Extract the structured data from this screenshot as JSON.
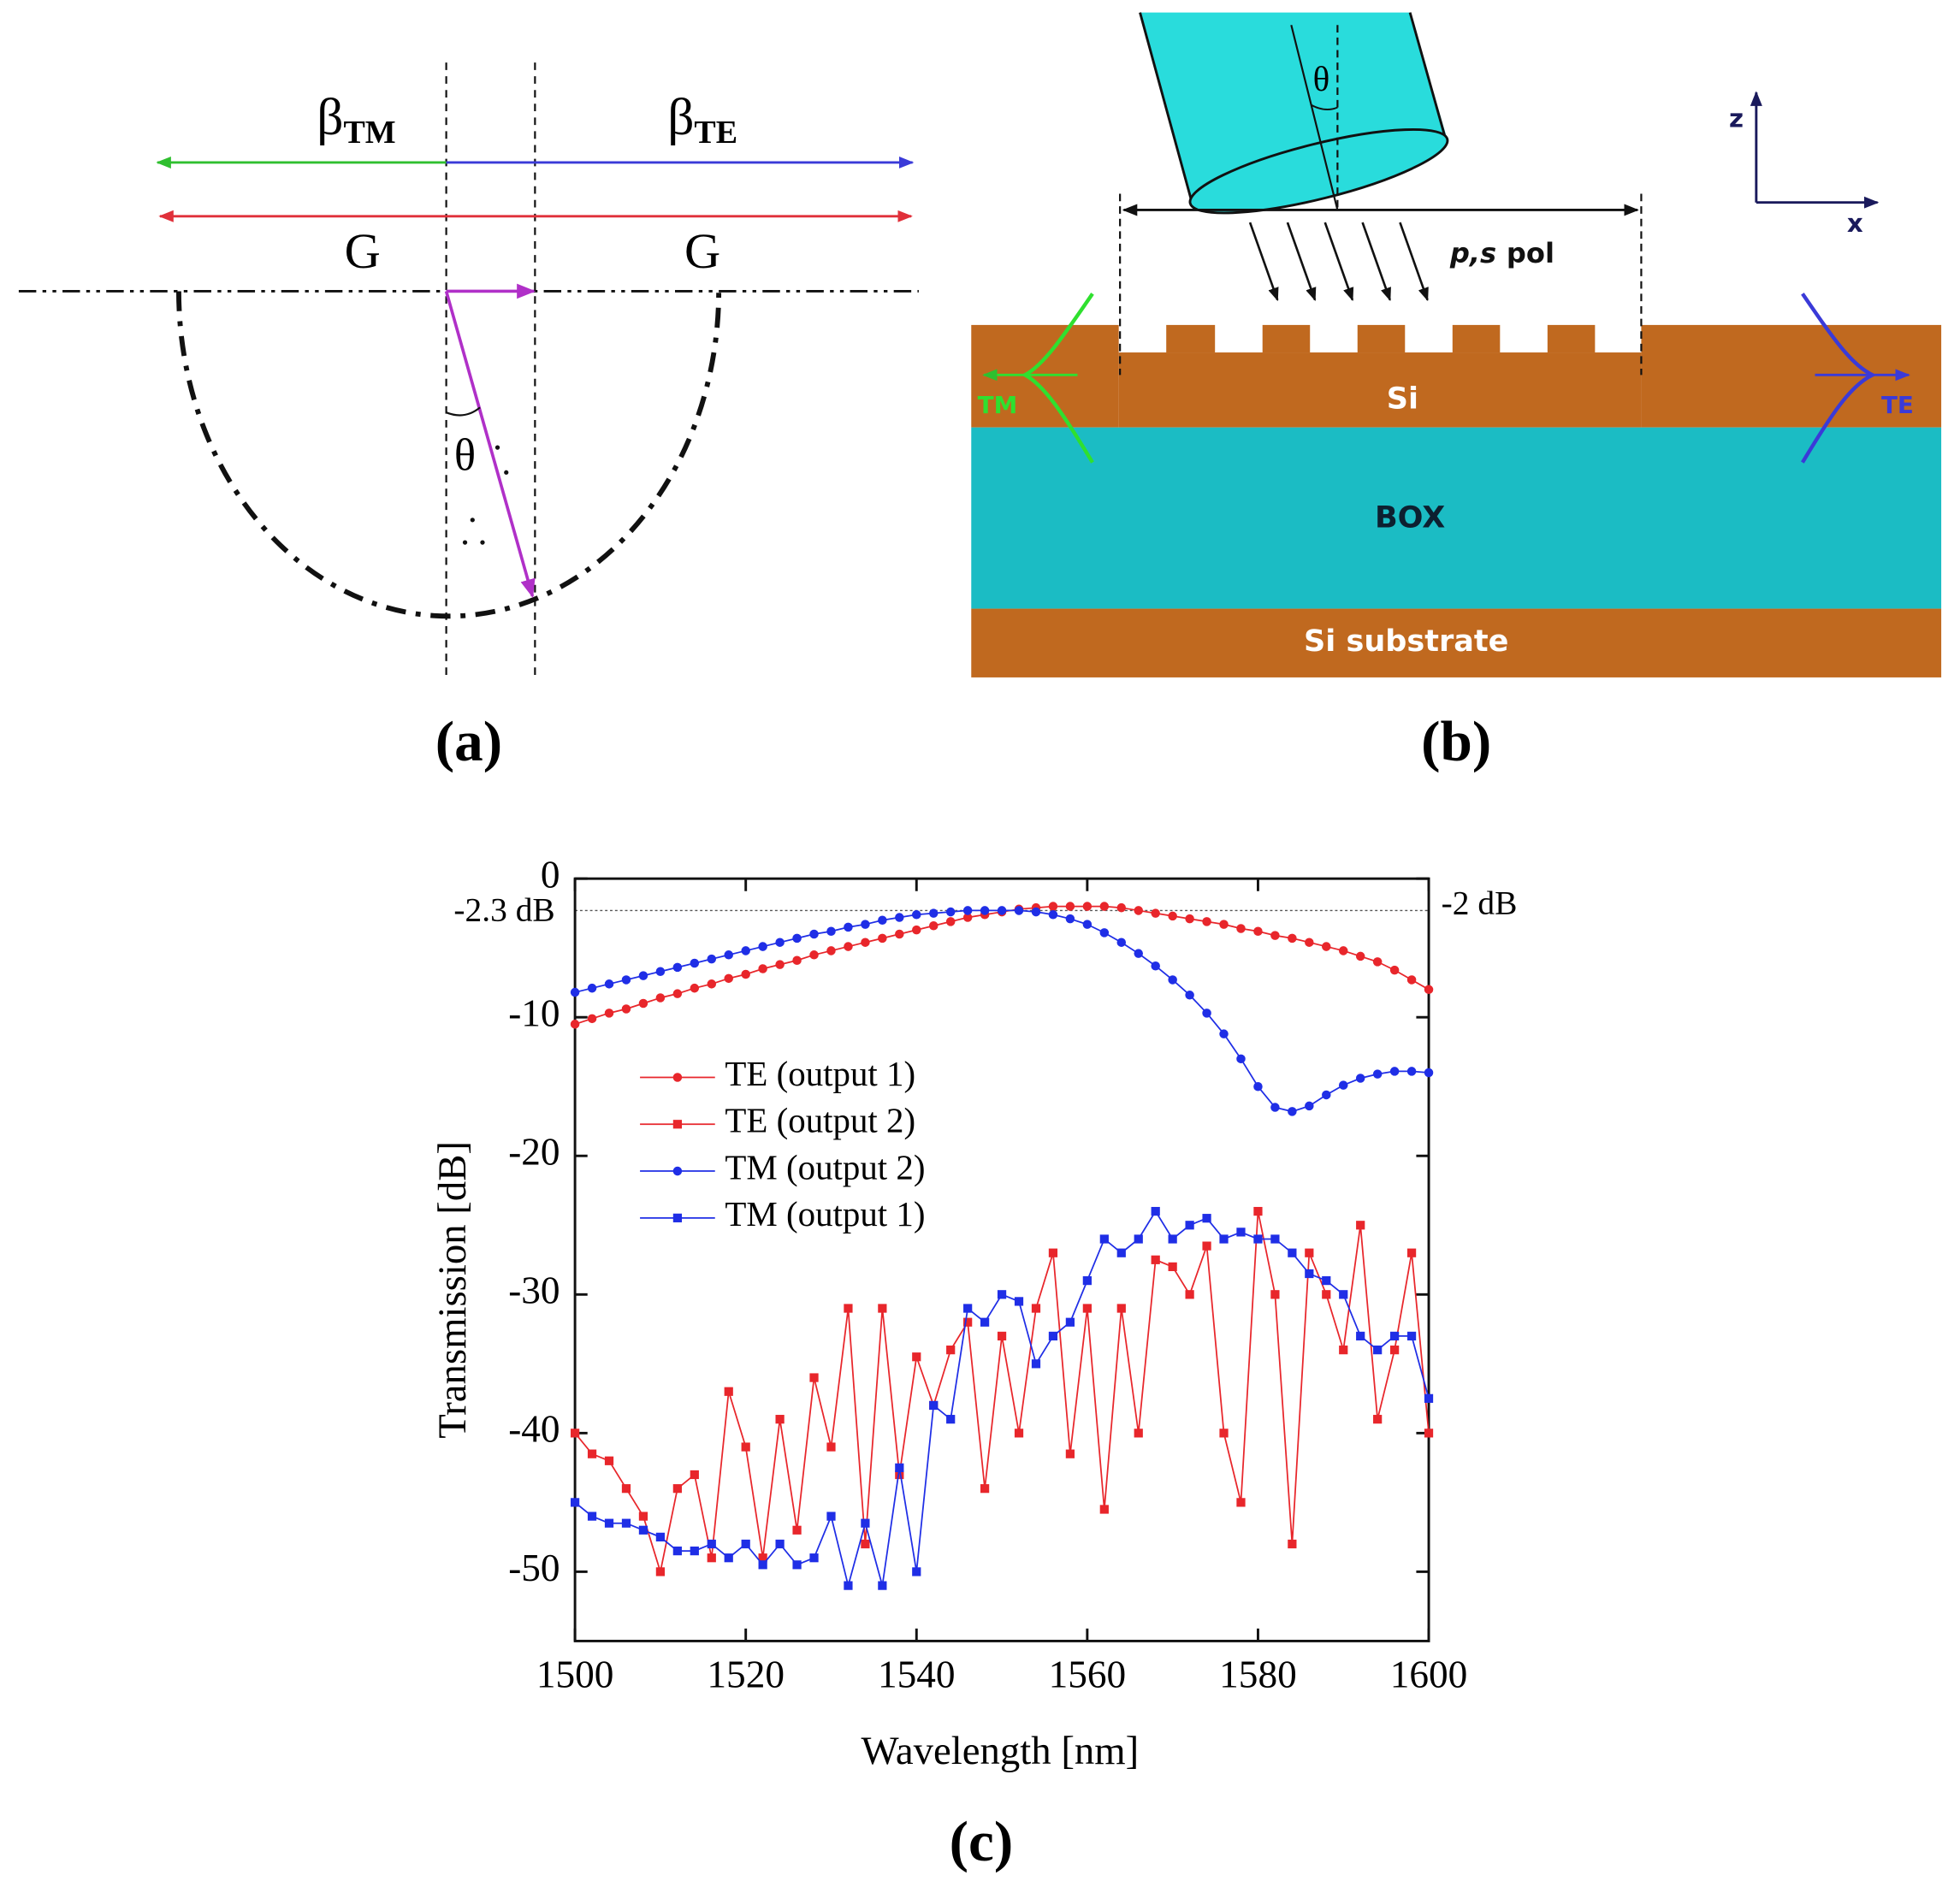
{
  "panel_a": {
    "label": "(a)",
    "beta_tm": {
      "symbol": "β",
      "subscript": "TM"
    },
    "beta_te": {
      "symbol": "β",
      "subscript": "TE"
    },
    "g_left": "G",
    "g_right": "G",
    "theta": "θ"
  },
  "panel_b": {
    "label": "(b)",
    "theta": "θ",
    "polarization": {
      "italic": "p,s",
      "text": "pol"
    },
    "layers": [
      "Si",
      "BOX",
      "Si substrate"
    ],
    "mode_left": "TM",
    "mode_right": "TE",
    "axis_z": "z",
    "axis_x": "x"
  },
  "panel_c_label": "(c)",
  "chart_data": {
    "type": "line",
    "x_label": "Wavelength [nm]",
    "y_label": "Transmission [dB]",
    "xlim": [
      1500,
      1600
    ],
    "xticks": [
      1500,
      1520,
      1540,
      1560,
      1580,
      1600
    ],
    "ylim": [
      -55,
      0
    ],
    "yticks": [
      0,
      -10,
      -20,
      -30,
      -40,
      -50
    ],
    "legend": "center left",
    "annotations": [
      {
        "text": "-2.3 dB",
        "y": -2.3,
        "side": "left"
      },
      {
        "text": "-2 dB",
        "y": -2,
        "side": "right"
      }
    ],
    "x": [
      1500,
      1502,
      1504,
      1506,
      1508,
      1510,
      1512,
      1514,
      1516,
      1518,
      1520,
      1522,
      1524,
      1526,
      1528,
      1530,
      1532,
      1534,
      1536,
      1538,
      1540,
      1542,
      1544,
      1546,
      1548,
      1550,
      1552,
      1554,
      1556,
      1558,
      1560,
      1562,
      1564,
      1566,
      1568,
      1570,
      1572,
      1574,
      1576,
      1578,
      1580,
      1582,
      1584,
      1586,
      1588,
      1590,
      1592,
      1594,
      1596,
      1598,
      1600
    ],
    "series": [
      {
        "name": "TE (output 1)",
        "color": "#e8262b",
        "marker": "circle",
        "values": [
          -10.5,
          -10.1,
          -9.7,
          -9.4,
          -9.0,
          -8.6,
          -8.3,
          -7.9,
          -7.6,
          -7.2,
          -6.9,
          -6.5,
          -6.2,
          -5.9,
          -5.5,
          -5.2,
          -4.9,
          -4.6,
          -4.3,
          -4.0,
          -3.7,
          -3.4,
          -3.1,
          -2.8,
          -2.6,
          -2.4,
          -2.2,
          -2.1,
          -2.0,
          -2.0,
          -2.0,
          -2.0,
          -2.1,
          -2.3,
          -2.5,
          -2.7,
          -2.9,
          -3.1,
          -3.3,
          -3.6,
          -3.8,
          -4.1,
          -4.3,
          -4.6,
          -4.9,
          -5.2,
          -5.6,
          -6.0,
          -6.6,
          -7.3,
          -8.0
        ]
      },
      {
        "name": "TE (output 2)",
        "color": "#e8262b",
        "marker": "square",
        "values": [
          -40,
          -41.5,
          -42,
          -44,
          -46,
          -50,
          -44,
          -43,
          -49,
          -37,
          -41,
          -49,
          -39,
          -47,
          -36,
          -41,
          -31,
          -48,
          -31,
          -43,
          -34.5,
          -38,
          -34,
          -32,
          -44,
          -33,
          -40,
          -31,
          -27,
          -41.5,
          -31,
          -45.5,
          -31,
          -40,
          -27.5,
          -28,
          -30,
          -26.5,
          -40,
          -45,
          -24,
          -30,
          -48,
          -27,
          -30,
          -34,
          -25,
          -39,
          -34,
          -27,
          -40
        ]
      },
      {
        "name": "TM (output 2)",
        "color": "#1f2ee6",
        "marker": "circle",
        "values": [
          -8.2,
          -7.9,
          -7.6,
          -7.3,
          -7.0,
          -6.7,
          -6.4,
          -6.1,
          -5.8,
          -5.5,
          -5.2,
          -4.9,
          -4.6,
          -4.3,
          -4.0,
          -3.8,
          -3.5,
          -3.3,
          -3.0,
          -2.8,
          -2.6,
          -2.5,
          -2.4,
          -2.3,
          -2.3,
          -2.3,
          -2.3,
          -2.4,
          -2.6,
          -2.9,
          -3.3,
          -3.9,
          -4.6,
          -5.4,
          -6.3,
          -7.3,
          -8.4,
          -9.7,
          -11.2,
          -13.0,
          -15.0,
          -16.5,
          -16.8,
          -16.4,
          -15.6,
          -14.9,
          -14.4,
          -14.1,
          -13.9,
          -13.9,
          -14.0
        ]
      },
      {
        "name": "TM (output 1)",
        "color": "#1f2ee6",
        "marker": "square",
        "values": [
          -45,
          -46,
          -46.5,
          -46.5,
          -47,
          -47.5,
          -48.5,
          -48.5,
          -48,
          -49,
          -48,
          -49.5,
          -48,
          -49.5,
          -49,
          -46,
          -51,
          -46.5,
          -51,
          -42.5,
          -50,
          -38,
          -39,
          -31,
          -32,
          -30,
          -30.5,
          -35,
          -33,
          -32,
          -29,
          -26,
          -27,
          -26,
          -24,
          -26,
          -25,
          -24.5,
          -26,
          -25.5,
          -26,
          -26,
          -27,
          -28.5,
          -29,
          -30,
          -33,
          -34,
          -33,
          -33,
          -37.5
        ]
      }
    ]
  }
}
